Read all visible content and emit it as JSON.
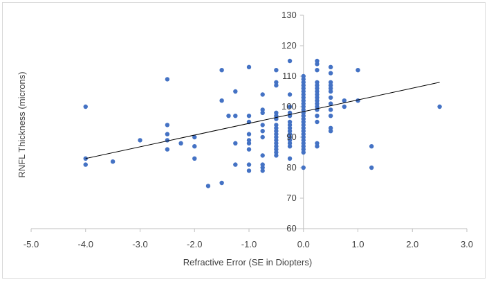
{
  "chart_data": {
    "type": "scatter",
    "title": "",
    "xlabel": "Refractive Error (SE in Diopters)",
    "ylabel": "RNFL Thickness (microns)",
    "xlim": [
      -5.0,
      3.0
    ],
    "ylim": [
      60,
      130
    ],
    "x_ticks": [
      -5.0,
      -4.0,
      -3.0,
      -2.0,
      -1.0,
      0.0,
      1.0,
      2.0,
      3.0
    ],
    "x_tick_labels": [
      "-5.0",
      "-4.0",
      "-3.0",
      "-2.0",
      "-1.0",
      "0.0",
      "1.0",
      "2.0",
      "3.0"
    ],
    "y_ticks": [
      60,
      70,
      80,
      90,
      100,
      110,
      120,
      130
    ],
    "y_tick_labels": [
      "60",
      "70",
      "80",
      "90",
      "100",
      "110",
      "120",
      "130"
    ],
    "grid": false,
    "legend": "none",
    "marker_color": "#4472c4",
    "trendline_color": "#000000",
    "trendline": {
      "x": [
        -4.0,
        2.5
      ],
      "y": [
        83,
        108
      ]
    },
    "x": [
      -4.0,
      -4.0,
      -4.0,
      -3.5,
      -3.0,
      -2.5,
      -2.5,
      -2.5,
      -2.5,
      -2.5,
      -2.25,
      -2.0,
      -2.0,
      -2.0,
      -1.75,
      -1.5,
      -1.5,
      -1.5,
      -1.375,
      -1.25,
      -1.25,
      -1.25,
      -1.25,
      -1.0,
      -1.0,
      -1.0,
      -1.0,
      -1.0,
      -1.0,
      -1.0,
      -1.0,
      -1.0,
      -0.75,
      -0.75,
      -0.75,
      -0.75,
      -0.75,
      -0.75,
      -0.75,
      -0.75,
      -0.75,
      -0.75,
      -0.5,
      -0.5,
      -0.5,
      -0.5,
      -0.5,
      -0.5,
      -0.5,
      -0.5,
      -0.5,
      -0.5,
      -0.5,
      -0.5,
      -0.5,
      -0.5,
      -0.5,
      -0.5,
      -0.5,
      -0.25,
      -0.25,
      -0.25,
      -0.25,
      -0.25,
      -0.25,
      -0.25,
      -0.25,
      -0.25,
      -0.25,
      -0.25,
      -0.25,
      -0.25,
      -0.25,
      -0.25,
      0.0,
      0.0,
      0.0,
      0.0,
      0.0,
      0.0,
      0.0,
      0.0,
      0.0,
      0.0,
      0.0,
      0.0,
      0.0,
      0.0,
      0.0,
      0.0,
      0.0,
      0.0,
      0.0,
      0.0,
      0.0,
      0.0,
      0.0,
      0.0,
      0.0,
      0.0,
      0.0,
      0.25,
      0.25,
      0.25,
      0.25,
      0.25,
      0.25,
      0.25,
      0.25,
      0.25,
      0.25,
      0.25,
      0.25,
      0.25,
      0.25,
      0.25,
      0.25,
      0.25,
      0.5,
      0.5,
      0.5,
      0.5,
      0.5,
      0.5,
      0.5,
      0.5,
      0.5,
      0.5,
      0.5,
      0.5,
      0.75,
      0.75,
      1.0,
      1.0,
      1.25,
      1.25,
      2.5
    ],
    "y": [
      100,
      83,
      81,
      82,
      89,
      109,
      94,
      91,
      89,
      86,
      88,
      90,
      87,
      83,
      74,
      112,
      102,
      75,
      97,
      105,
      97,
      88,
      81,
      113,
      97,
      95,
      91,
      89,
      88,
      86,
      81,
      79,
      104,
      99,
      98,
      94,
      92,
      90,
      84,
      81,
      80,
      79,
      112,
      108,
      107,
      98,
      97,
      96,
      94,
      93,
      92,
      91,
      90,
      89,
      88,
      87,
      86,
      85,
      84,
      115,
      104,
      100,
      98,
      97,
      95,
      94,
      93,
      92,
      91,
      90,
      89,
      88,
      87,
      83,
      110,
      109,
      108,
      107,
      106,
      105,
      104,
      103,
      102,
      101,
      100,
      99,
      98,
      97,
      96,
      95,
      94,
      93,
      92,
      91,
      90,
      89,
      88,
      87,
      86,
      85,
      80,
      115,
      114,
      112,
      108,
      107,
      106,
      105,
      104,
      103,
      102,
      101,
      100,
      99,
      97,
      95,
      88,
      87,
      113,
      111,
      108,
      107,
      106,
      105,
      103,
      101,
      99,
      97,
      93,
      92,
      102,
      100,
      112,
      102,
      87,
      80,
      100
    ]
  }
}
